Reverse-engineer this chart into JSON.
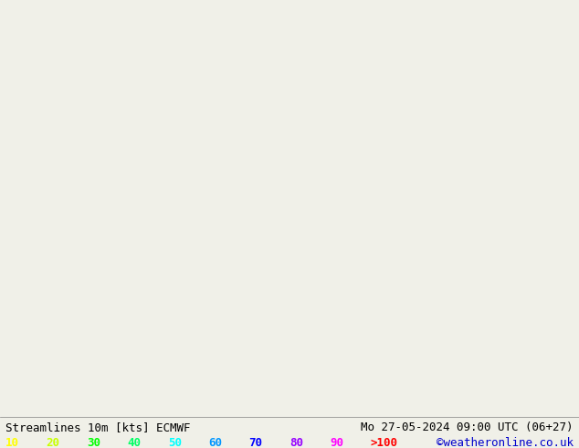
{
  "title_left": "Streamlines 10m [kts] ECMWF",
  "title_right": "Mo 27-05-2024 09:00 UTC (06+27)",
  "credit": "©weatheronline.co.uk",
  "legend_values": [
    "10",
    "20",
    "30",
    "40",
    "50",
    "60",
    "70",
    "80",
    "90",
    ">100"
  ],
  "legend_colors": [
    "#ffff00",
    "#c8ff00",
    "#00ff00",
    "#00ff64",
    "#00ffff",
    "#0096ff",
    "#0000ff",
    "#9600ff",
    "#ff00ff",
    "#ff0000"
  ],
  "background_color": "#f0f0e8",
  "land_color": "#ffffb4",
  "ocean_color": "#e8e8f0",
  "fig_width": 6.34,
  "fig_height": 4.9,
  "dpi": 100,
  "map_extent": [
    80,
    200,
    -65,
    10
  ],
  "font_size_title": 9,
  "font_size_legend": 9
}
